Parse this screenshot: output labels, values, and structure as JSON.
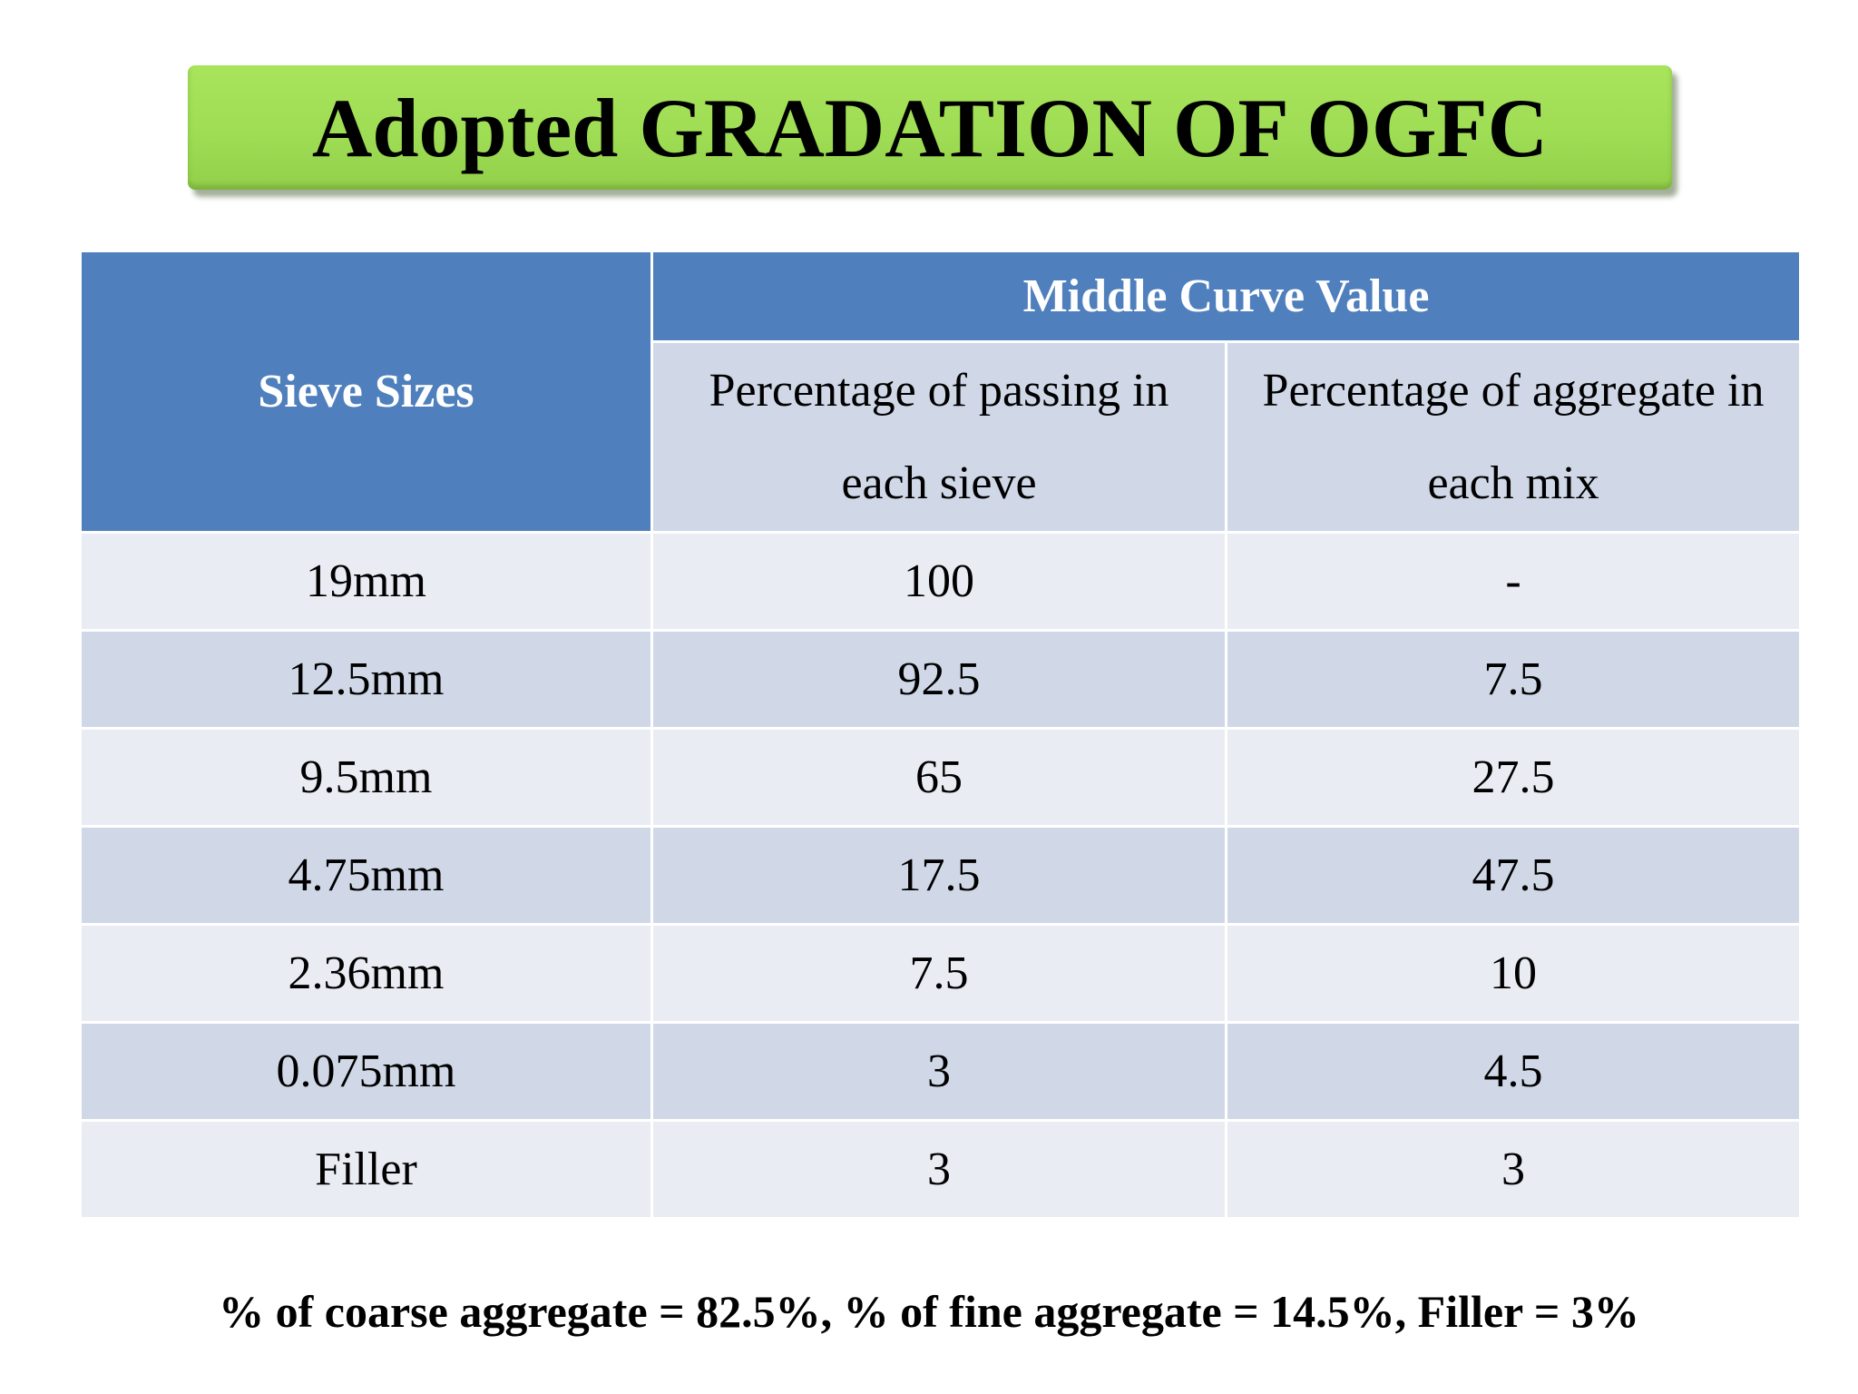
{
  "title": "Adopted GRADATION OF OGFC",
  "table": {
    "headers": {
      "sieve_sizes": "Sieve Sizes",
      "group": "Middle Curve Value",
      "col_passing": "Percentage of passing in each sieve",
      "col_aggregate": "Percentage of aggregate in each mix"
    },
    "rows": [
      {
        "sieve": "19mm",
        "passing": "100",
        "aggregate": "-"
      },
      {
        "sieve": "12.5mm",
        "passing": "92.5",
        "aggregate": "7.5"
      },
      {
        "sieve": "9.5mm",
        "passing": "65",
        "aggregate": "27.5"
      },
      {
        "sieve": "4.75mm",
        "passing": "17.5",
        "aggregate": "47.5"
      },
      {
        "sieve": "2.36mm",
        "passing": "7.5",
        "aggregate": "10"
      },
      {
        "sieve": "0.075mm",
        "passing": "3",
        "aggregate": "4.5"
      },
      {
        "sieve": "Filler",
        "passing": "3",
        "aggregate": "3"
      }
    ]
  },
  "footnote": "% of coarse aggregate = 82.5%, % of fine aggregate = 14.5%, Filler = 3%",
  "colors": {
    "title_banner": "#9fdd55",
    "header_blue": "#4f80bd",
    "row_light": "#e9ecf3",
    "row_dark": "#d0d8e8"
  }
}
